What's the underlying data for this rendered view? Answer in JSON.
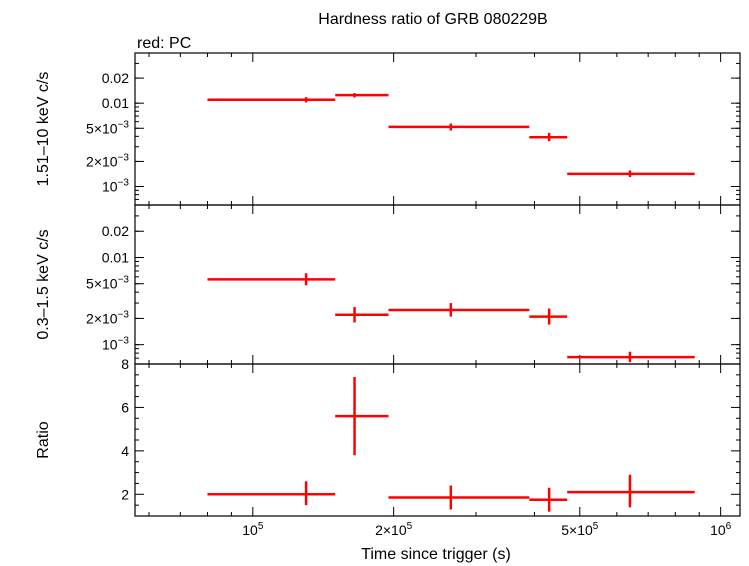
{
  "chart_data": {
    "type": "scatter",
    "title": "Hardness ratio of GRB 080229B",
    "subtitle": "red: PC",
    "xlabel": "Time since trigger (s)",
    "xscale": "log",
    "xlim": [
      56000,
      1100000
    ],
    "x_ticks": [
      {
        "v": 100000,
        "b": "10",
        "e": "5"
      },
      {
        "v": 200000,
        "b": "2×10",
        "e": "5"
      },
      {
        "v": 500000,
        "b": "5×10",
        "e": "5"
      },
      {
        "v": 1000000,
        "b": "10",
        "e": "6"
      }
    ],
    "panels": [
      {
        "name": "hard",
        "ylabel": "1.51–10 keV c/s",
        "yscale": "log",
        "ylim": [
          0.0006,
          0.04
        ],
        "y_ticks": [
          {
            "v": 0.02,
            "b": "0.02",
            "e": ""
          },
          {
            "v": 0.01,
            "b": "0.01",
            "e": ""
          },
          {
            "v": 0.005,
            "b": "5×10",
            "e": "−3"
          },
          {
            "v": 0.002,
            "b": "2×10",
            "e": "−3"
          },
          {
            "v": 0.001,
            "b": "10",
            "e": "−3"
          }
        ],
        "points": [
          {
            "x": 130000,
            "xlo": 80000,
            "xhi": 150000,
            "y": 0.011,
            "ylo": 0.0102,
            "yhi": 0.0118
          },
          {
            "x": 165000,
            "xlo": 150000,
            "xhi": 195000,
            "y": 0.0125,
            "ylo": 0.0117,
            "yhi": 0.0132
          },
          {
            "x": 265000,
            "xlo": 195000,
            "xhi": 390000,
            "y": 0.0052,
            "ylo": 0.0047,
            "yhi": 0.0057
          },
          {
            "x": 430000,
            "xlo": 390000,
            "xhi": 470000,
            "y": 0.0039,
            "ylo": 0.0035,
            "yhi": 0.0044
          },
          {
            "x": 640000,
            "xlo": 470000,
            "xhi": 880000,
            "y": 0.00142,
            "ylo": 0.0013,
            "yhi": 0.00156
          }
        ]
      },
      {
        "name": "soft",
        "ylabel": "0.3–1.5 keV c/s",
        "yscale": "log",
        "ylim": [
          0.0006,
          0.04
        ],
        "y_ticks": [
          {
            "v": 0.02,
            "b": "0.02",
            "e": ""
          },
          {
            "v": 0.01,
            "b": "0.01",
            "e": ""
          },
          {
            "v": 0.005,
            "b": "5×10",
            "e": "−3"
          },
          {
            "v": 0.002,
            "b": "2×10",
            "e": "−3"
          },
          {
            "v": 0.001,
            "b": "10",
            "e": "−3"
          }
        ],
        "points": [
          {
            "x": 130000,
            "xlo": 80000,
            "xhi": 150000,
            "y": 0.0056,
            "ylo": 0.0048,
            "yhi": 0.0066
          },
          {
            "x": 165000,
            "xlo": 150000,
            "xhi": 195000,
            "y": 0.0022,
            "ylo": 0.0018,
            "yhi": 0.0027
          },
          {
            "x": 265000,
            "xlo": 195000,
            "xhi": 390000,
            "y": 0.0025,
            "ylo": 0.0021,
            "yhi": 0.003
          },
          {
            "x": 430000,
            "xlo": 390000,
            "xhi": 470000,
            "y": 0.0021,
            "ylo": 0.0017,
            "yhi": 0.0026
          },
          {
            "x": 640000,
            "xlo": 470000,
            "xhi": 880000,
            "y": 0.00072,
            "ylo": 0.00063,
            "yhi": 0.00083
          }
        ]
      },
      {
        "name": "ratio",
        "ylabel": "Ratio",
        "yscale": "linear",
        "ylim": [
          1.0,
          8.0
        ],
        "y_ticks": [
          {
            "v": 2,
            "b": "2",
            "e": ""
          },
          {
            "v": 4,
            "b": "4",
            "e": ""
          },
          {
            "v": 6,
            "b": "6",
            "e": ""
          },
          {
            "v": 8,
            "b": "8",
            "e": ""
          }
        ],
        "points": [
          {
            "x": 130000,
            "xlo": 80000,
            "xhi": 150000,
            "y": 2.0,
            "ylo": 1.5,
            "yhi": 2.6
          },
          {
            "x": 165000,
            "xlo": 150000,
            "xhi": 195000,
            "y": 5.6,
            "ylo": 3.8,
            "yhi": 7.4
          },
          {
            "x": 265000,
            "xlo": 195000,
            "xhi": 390000,
            "y": 1.85,
            "ylo": 1.3,
            "yhi": 2.4
          },
          {
            "x": 430000,
            "xlo": 390000,
            "xhi": 470000,
            "y": 1.75,
            "ylo": 1.2,
            "yhi": 2.3
          },
          {
            "x": 640000,
            "xlo": 470000,
            "xhi": 880000,
            "y": 2.1,
            "ylo": 1.4,
            "yhi": 2.9
          }
        ]
      }
    ],
    "colors": {
      "series": "#ff0000",
      "axes": "#000000"
    }
  }
}
